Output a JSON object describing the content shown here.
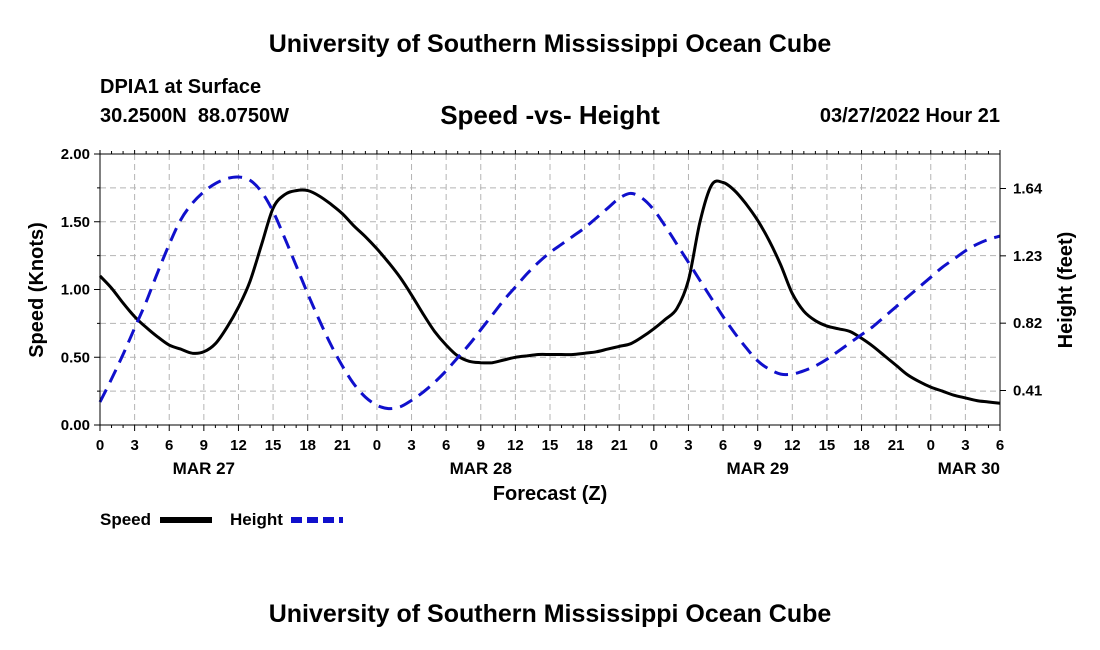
{
  "header": {
    "title": "University of Southern Mississippi Ocean Cube",
    "station": "DPIA1 at Surface",
    "coords": "30.2500N  88.0750W",
    "datetime": "03/27/2022 Hour 21"
  },
  "footer": {
    "title": "University of Southern Mississippi Ocean Cube"
  },
  "colors": {
    "speed": "#000000",
    "height": "#1010cc",
    "grid": "#b4b4b4"
  },
  "chart_data": {
    "type": "line",
    "title": "Speed -vs- Height",
    "xlabel": "Forecast (Z)",
    "ylabel": "Speed (Knots)",
    "y2label": "Height (feet)",
    "x_unit": "hours since 00Z MAR 27",
    "xlim": [
      0,
      78
    ],
    "ylim": [
      0,
      2.0
    ],
    "y2lim": [
      0.2,
      1.85
    ],
    "x_tick_labels": [
      "0",
      "3",
      "6",
      "9",
      "12",
      "15",
      "18",
      "21",
      "0",
      "3",
      "6",
      "9",
      "12",
      "15",
      "18",
      "21",
      "0",
      "3",
      "6",
      "9",
      "12",
      "15",
      "18",
      "21",
      "0",
      "3",
      "6"
    ],
    "y_ticks": [
      0,
      0.5,
      1.0,
      1.5,
      2.0
    ],
    "y_tick_labels": [
      "0.00",
      "0.50",
      "1.00",
      "1.50",
      "2.00"
    ],
    "y2_ticks": [
      0.41,
      0.82,
      1.23,
      1.64
    ],
    "y2_tick_labels": [
      "0.41",
      "0.82",
      "1.23",
      "1.64"
    ],
    "day_labels": [
      {
        "x": 9,
        "label": "MAR 27"
      },
      {
        "x": 33,
        "label": "MAR 28"
      },
      {
        "x": 57,
        "label": "MAR 29"
      },
      {
        "x": 78,
        "label": "MAR 30"
      }
    ],
    "legend": [
      "Speed",
      "Height"
    ],
    "series": [
      {
        "name": "Speed",
        "axis": "left",
        "style": "solid",
        "x": [
          0,
          1,
          2,
          3,
          4,
          5,
          6,
          7,
          8,
          9,
          10,
          11,
          12,
          13,
          14,
          15,
          16,
          17,
          18,
          19,
          20,
          21,
          22,
          23,
          24,
          25,
          26,
          27,
          28,
          29,
          30,
          31,
          32,
          33,
          34,
          35,
          36,
          37,
          38,
          39,
          40,
          41,
          42,
          43,
          44,
          45,
          46,
          47,
          48,
          49,
          50,
          51,
          52,
          53,
          54,
          55,
          56,
          57,
          58,
          59,
          60,
          61,
          62,
          63,
          64,
          65,
          66,
          67,
          68,
          69,
          70,
          71,
          72,
          73,
          74,
          75,
          76,
          77,
          78
        ],
        "values": [
          1.1,
          1.01,
          0.9,
          0.8,
          0.72,
          0.65,
          0.59,
          0.56,
          0.53,
          0.54,
          0.6,
          0.72,
          0.87,
          1.06,
          1.33,
          1.6,
          1.7,
          1.73,
          1.73,
          1.69,
          1.63,
          1.56,
          1.47,
          1.39,
          1.3,
          1.2,
          1.09,
          0.96,
          0.82,
          0.69,
          0.59,
          0.51,
          0.47,
          0.46,
          0.46,
          0.48,
          0.5,
          0.51,
          0.52,
          0.52,
          0.52,
          0.52,
          0.53,
          0.54,
          0.56,
          0.58,
          0.6,
          0.65,
          0.71,
          0.78,
          0.86,
          1.07,
          1.5,
          1.77,
          1.79,
          1.73,
          1.63,
          1.51,
          1.36,
          1.18,
          0.97,
          0.84,
          0.77,
          0.73,
          0.71,
          0.69,
          0.64,
          0.58,
          0.51,
          0.44,
          0.37,
          0.32,
          0.28,
          0.25,
          0.22,
          0.2,
          0.18,
          0.17,
          0.16
        ]
      },
      {
        "name": "Height",
        "axis": "right",
        "style": "dashed",
        "x": [
          0,
          1,
          2,
          3,
          4,
          5,
          6,
          7,
          8,
          9,
          10,
          11,
          12,
          13,
          14,
          15,
          16,
          17,
          18,
          19,
          20,
          21,
          22,
          23,
          24,
          25,
          26,
          27,
          28,
          29,
          30,
          31,
          32,
          33,
          34,
          35,
          36,
          37,
          38,
          39,
          40,
          41,
          42,
          43,
          44,
          45,
          46,
          47,
          48,
          49,
          50,
          51,
          52,
          53,
          54,
          55,
          56,
          57,
          58,
          59,
          60,
          61,
          62,
          63,
          64,
          65,
          66,
          67,
          68,
          69,
          70,
          71,
          72,
          73,
          74,
          75,
          76,
          77,
          78
        ],
        "values": [
          0.34,
          0.48,
          0.63,
          0.79,
          0.95,
          1.13,
          1.3,
          1.45,
          1.55,
          1.62,
          1.67,
          1.7,
          1.71,
          1.69,
          1.62,
          1.5,
          1.34,
          1.17,
          1.0,
          0.84,
          0.69,
          0.56,
          0.45,
          0.37,
          0.32,
          0.3,
          0.31,
          0.35,
          0.4,
          0.46,
          0.53,
          0.61,
          0.69,
          0.78,
          0.87,
          0.96,
          1.04,
          1.12,
          1.19,
          1.25,
          1.3,
          1.35,
          1.4,
          1.46,
          1.52,
          1.58,
          1.61,
          1.58,
          1.51,
          1.41,
          1.3,
          1.19,
          1.08,
          0.97,
          0.86,
          0.76,
          0.67,
          0.59,
          0.54,
          0.51,
          0.51,
          0.53,
          0.56,
          0.6,
          0.65,
          0.7,
          0.75,
          0.8,
          0.86,
          0.92,
          0.98,
          1.04,
          1.1,
          1.16,
          1.21,
          1.26,
          1.3,
          1.33,
          1.35
        ]
      }
    ]
  }
}
